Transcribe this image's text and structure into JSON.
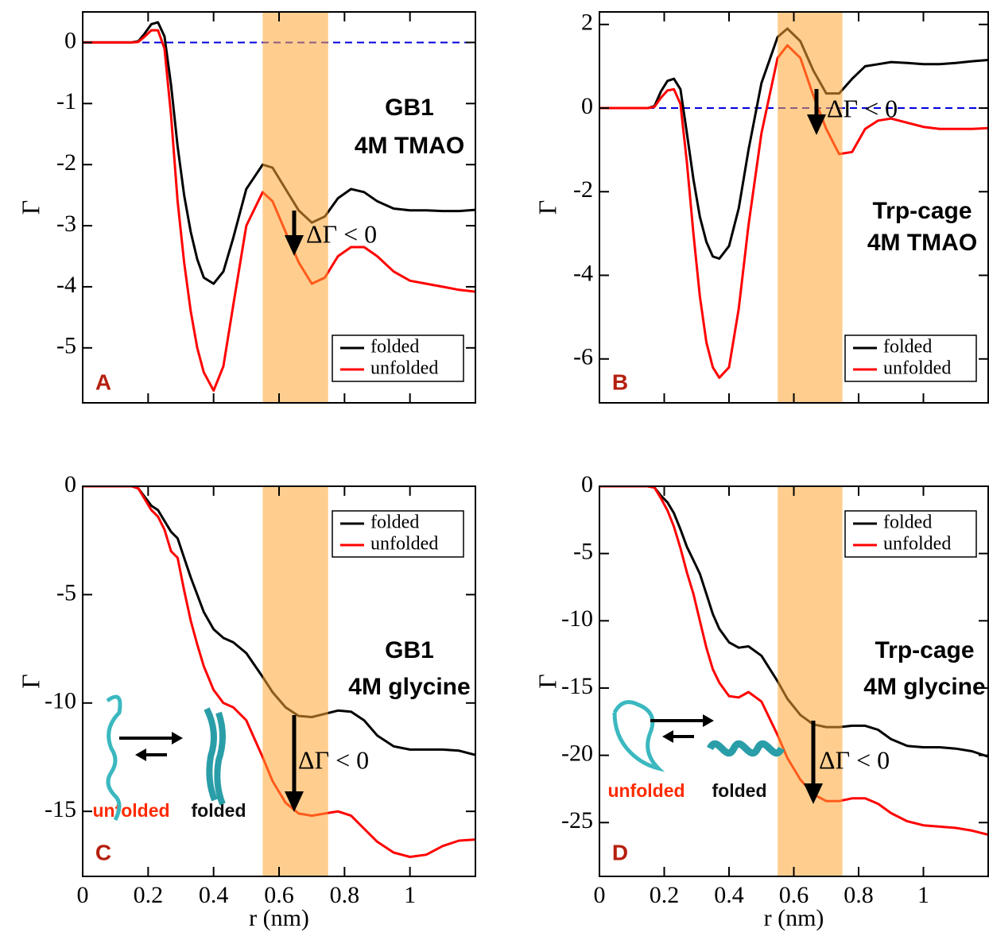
{
  "chart_data": [
    {
      "type": "line",
      "panel_label": "A",
      "label_lines": [
        "GB1",
        "4M TMAO"
      ],
      "annotation": "ΔΓ < 0",
      "x_label": null,
      "y_label": "Γ",
      "show_xtick_labels": false,
      "x": [
        0,
        0.1,
        0.15,
        0.17,
        0.19,
        0.21,
        0.23,
        0.25,
        0.27,
        0.29,
        0.31,
        0.33,
        0.35,
        0.37,
        0.4,
        0.43,
        0.46,
        0.5,
        0.55,
        0.58,
        0.62,
        0.66,
        0.7,
        0.74,
        0.78,
        0.82,
        0.86,
        0.9,
        0.95,
        1.0,
        1.05,
        1.1,
        1.15,
        1.2
      ],
      "series": [
        {
          "name": "folded",
          "color": "#000000",
          "values": [
            0,
            0,
            0,
            0.02,
            0.15,
            0.3,
            0.33,
            0.1,
            -0.7,
            -1.7,
            -2.5,
            -3.1,
            -3.55,
            -3.85,
            -3.95,
            -3.75,
            -3.2,
            -2.4,
            -2.0,
            -2.05,
            -2.4,
            -2.75,
            -2.95,
            -2.85,
            -2.55,
            -2.4,
            -2.45,
            -2.6,
            -2.72,
            -2.75,
            -2.75,
            -2.76,
            -2.76,
            -2.74
          ]
        },
        {
          "name": "unfolded",
          "color": "#ff0000",
          "values": [
            0,
            0,
            0,
            0.01,
            0.1,
            0.2,
            0.2,
            -0.1,
            -1.2,
            -2.6,
            -3.6,
            -4.4,
            -5.0,
            -5.4,
            -5.7,
            -5.3,
            -4.3,
            -3.0,
            -2.45,
            -2.6,
            -3.1,
            -3.6,
            -3.95,
            -3.85,
            -3.5,
            -3.35,
            -3.35,
            -3.5,
            -3.75,
            -3.9,
            -3.95,
            -4.0,
            -4.05,
            -4.08
          ]
        }
      ],
      "xlim": [
        0,
        1.2
      ],
      "xticks": [
        0,
        0.2,
        0.4,
        0.6,
        0.8,
        1
      ],
      "ylim": [
        -5.9,
        0.5
      ],
      "yticks": [
        0,
        -1,
        -2,
        -3,
        -4,
        -5
      ],
      "shaded_region": [
        0.55,
        0.75
      ],
      "shade_color": "#ffa533",
      "reference_line": 0,
      "reference_color": "#0000dd",
      "legend": "lower right"
    },
    {
      "type": "line",
      "panel_label": "B",
      "label_lines": [
        "Trp-cage",
        "4M TMAO"
      ],
      "annotation": "ΔΓ < 0",
      "x_label": null,
      "y_label": "Γ",
      "show_xtick_labels": false,
      "x": [
        0,
        0.1,
        0.15,
        0.17,
        0.19,
        0.21,
        0.23,
        0.25,
        0.27,
        0.29,
        0.31,
        0.33,
        0.35,
        0.37,
        0.4,
        0.43,
        0.46,
        0.5,
        0.55,
        0.58,
        0.62,
        0.66,
        0.7,
        0.74,
        0.78,
        0.82,
        0.86,
        0.9,
        0.95,
        1.0,
        1.05,
        1.1,
        1.15,
        1.2
      ],
      "series": [
        {
          "name": "folded",
          "color": "#000000",
          "values": [
            0,
            0,
            0,
            0.05,
            0.4,
            0.65,
            0.7,
            0.45,
            -0.6,
            -1.7,
            -2.6,
            -3.2,
            -3.55,
            -3.6,
            -3.3,
            -2.4,
            -1.0,
            0.6,
            1.7,
            1.9,
            1.6,
            0.9,
            0.35,
            0.35,
            0.7,
            1.0,
            1.05,
            1.1,
            1.08,
            1.05,
            1.05,
            1.08,
            1.12,
            1.15
          ]
        },
        {
          "name": "unfolded",
          "color": "#ff0000",
          "values": [
            0,
            0,
            0,
            0.03,
            0.25,
            0.42,
            0.45,
            0.1,
            -1.3,
            -3.0,
            -4.5,
            -5.6,
            -6.2,
            -6.45,
            -6.2,
            -4.8,
            -2.8,
            -0.6,
            1.2,
            1.5,
            1.2,
            0.3,
            -0.5,
            -1.1,
            -1.05,
            -0.5,
            -0.3,
            -0.25,
            -0.35,
            -0.45,
            -0.5,
            -0.5,
            -0.5,
            -0.48
          ]
        }
      ],
      "xlim": [
        0,
        1.2
      ],
      "xticks": [
        0,
        0.2,
        0.4,
        0.6,
        0.8,
        1
      ],
      "ylim": [
        -7.05,
        2.3
      ],
      "yticks": [
        2,
        0,
        -2,
        -4,
        -6
      ],
      "shaded_region": [
        0.55,
        0.75
      ],
      "shade_color": "#ffa533",
      "reference_line": 0,
      "reference_color": "#0000dd",
      "legend": "lower right"
    },
    {
      "type": "line",
      "panel_label": "C",
      "label_lines": [
        "GB1",
        "4M glycine"
      ],
      "annotation": "ΔΓ < 0",
      "inset_labels": [
        "unfolded",
        "folded"
      ],
      "x_label": "r (nm)",
      "y_label": "Γ",
      "show_xtick_labels": true,
      "x": [
        0,
        0.1,
        0.15,
        0.17,
        0.19,
        0.21,
        0.23,
        0.25,
        0.27,
        0.29,
        0.31,
        0.33,
        0.35,
        0.37,
        0.4,
        0.43,
        0.46,
        0.5,
        0.55,
        0.58,
        0.62,
        0.66,
        0.7,
        0.74,
        0.78,
        0.82,
        0.86,
        0.9,
        0.95,
        1.0,
        1.05,
        1.1,
        1.15,
        1.2
      ],
      "series": [
        {
          "name": "folded",
          "color": "#000000",
          "values": [
            0,
            0,
            0,
            -0.1,
            -0.5,
            -0.9,
            -1.1,
            -1.6,
            -2.1,
            -2.4,
            -3.3,
            -4.2,
            -5.0,
            -5.8,
            -6.6,
            -7.0,
            -7.2,
            -7.7,
            -8.8,
            -9.5,
            -10.2,
            -10.6,
            -10.65,
            -10.5,
            -10.35,
            -10.4,
            -10.8,
            -11.5,
            -12.0,
            -12.15,
            -12.15,
            -12.15,
            -12.2,
            -12.4
          ]
        },
        {
          "name": "unfolded",
          "color": "#ff0000",
          "values": [
            0,
            0,
            0,
            -0.1,
            -0.6,
            -1.1,
            -1.4,
            -2.0,
            -3.0,
            -3.3,
            -4.8,
            -6.2,
            -7.3,
            -8.3,
            -9.4,
            -10.0,
            -10.2,
            -10.8,
            -12.5,
            -13.6,
            -14.6,
            -15.1,
            -15.2,
            -15.1,
            -15.0,
            -15.2,
            -15.8,
            -16.4,
            -16.9,
            -17.1,
            -17.0,
            -16.6,
            -16.35,
            -16.3
          ]
        }
      ],
      "xlim": [
        0,
        1.2
      ],
      "xticks": [
        0,
        0.2,
        0.4,
        0.6,
        0.8,
        1
      ],
      "ylim": [
        -18,
        0
      ],
      "yticks": [
        0,
        -5,
        -10,
        -15
      ],
      "shaded_region": [
        0.55,
        0.75
      ],
      "shade_color": "#ffa533",
      "legend": "upper right"
    },
    {
      "type": "line",
      "panel_label": "D",
      "label_lines": [
        "Trp-cage",
        "4M glycine"
      ],
      "annotation": "ΔΓ < 0",
      "inset_labels": [
        "unfolded",
        "folded"
      ],
      "x_label": "r (nm)",
      "y_label": "Γ",
      "show_xtick_labels": true,
      "x": [
        0,
        0.1,
        0.15,
        0.17,
        0.19,
        0.21,
        0.23,
        0.25,
        0.27,
        0.29,
        0.31,
        0.33,
        0.35,
        0.37,
        0.4,
        0.43,
        0.46,
        0.5,
        0.55,
        0.58,
        0.62,
        0.66,
        0.7,
        0.74,
        0.78,
        0.82,
        0.86,
        0.9,
        0.95,
        1.0,
        1.05,
        1.1,
        1.15,
        1.2
      ],
      "series": [
        {
          "name": "folded",
          "color": "#000000",
          "values": [
            0,
            0,
            0,
            -0.1,
            -0.7,
            -1.2,
            -2.0,
            -3.2,
            -4.5,
            -5.5,
            -6.5,
            -8.0,
            -9.5,
            -10.6,
            -11.6,
            -12.0,
            -11.9,
            -12.6,
            -14.5,
            -15.8,
            -17.0,
            -17.7,
            -17.9,
            -17.9,
            -17.8,
            -17.8,
            -18.1,
            -18.8,
            -19.3,
            -19.4,
            -19.4,
            -19.5,
            -19.7,
            -20.1
          ]
        },
        {
          "name": "unfolded",
          "color": "#ff0000",
          "values": [
            0,
            0,
            0,
            -0.1,
            -0.9,
            -1.8,
            -3.0,
            -4.6,
            -6.4,
            -8.0,
            -10.0,
            -12.0,
            -13.6,
            -14.6,
            -15.6,
            -15.7,
            -15.3,
            -16.0,
            -18.5,
            -20.2,
            -21.8,
            -22.9,
            -23.4,
            -23.4,
            -23.2,
            -23.2,
            -23.6,
            -24.3,
            -24.9,
            -25.2,
            -25.3,
            -25.4,
            -25.6,
            -25.9
          ]
        }
      ],
      "xlim": [
        0,
        1.2
      ],
      "xticks": [
        0,
        0.2,
        0.4,
        0.6,
        0.8,
        1
      ],
      "ylim": [
        -29,
        0
      ],
      "yticks": [
        0,
        -5,
        -10,
        -15,
        -20,
        -25
      ],
      "shaded_region": [
        0.55,
        0.75
      ],
      "shade_color": "#ffa533",
      "legend": "upper right"
    }
  ]
}
